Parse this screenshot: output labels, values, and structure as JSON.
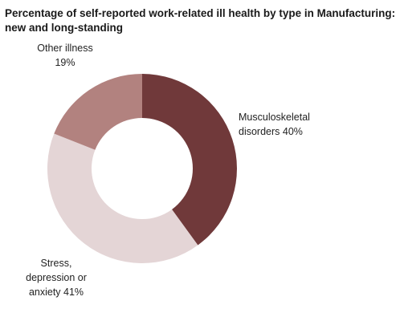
{
  "chart_data": {
    "type": "pie",
    "subtype": "donut",
    "title_lines": [
      "Percentage of self-reported work-related ill health by type in Manufacturing:",
      "new and long-standing"
    ],
    "slices": [
      {
        "label_lines": [
          "Musculoskeletal",
          "disorders 40%"
        ],
        "value": 40,
        "color": "#70393a"
      },
      {
        "label_lines": [
          "Stress,",
          "depression or",
          "anxiety 41%"
        ],
        "value": 41,
        "color": "#e4d5d6"
      },
      {
        "label_lines": [
          "Other illness",
          "19%"
        ],
        "value": 19,
        "color": "#b2827f"
      }
    ],
    "start_angle_deg": 0,
    "direction": "clockwise",
    "legend": "none",
    "label_placement": "outside"
  }
}
